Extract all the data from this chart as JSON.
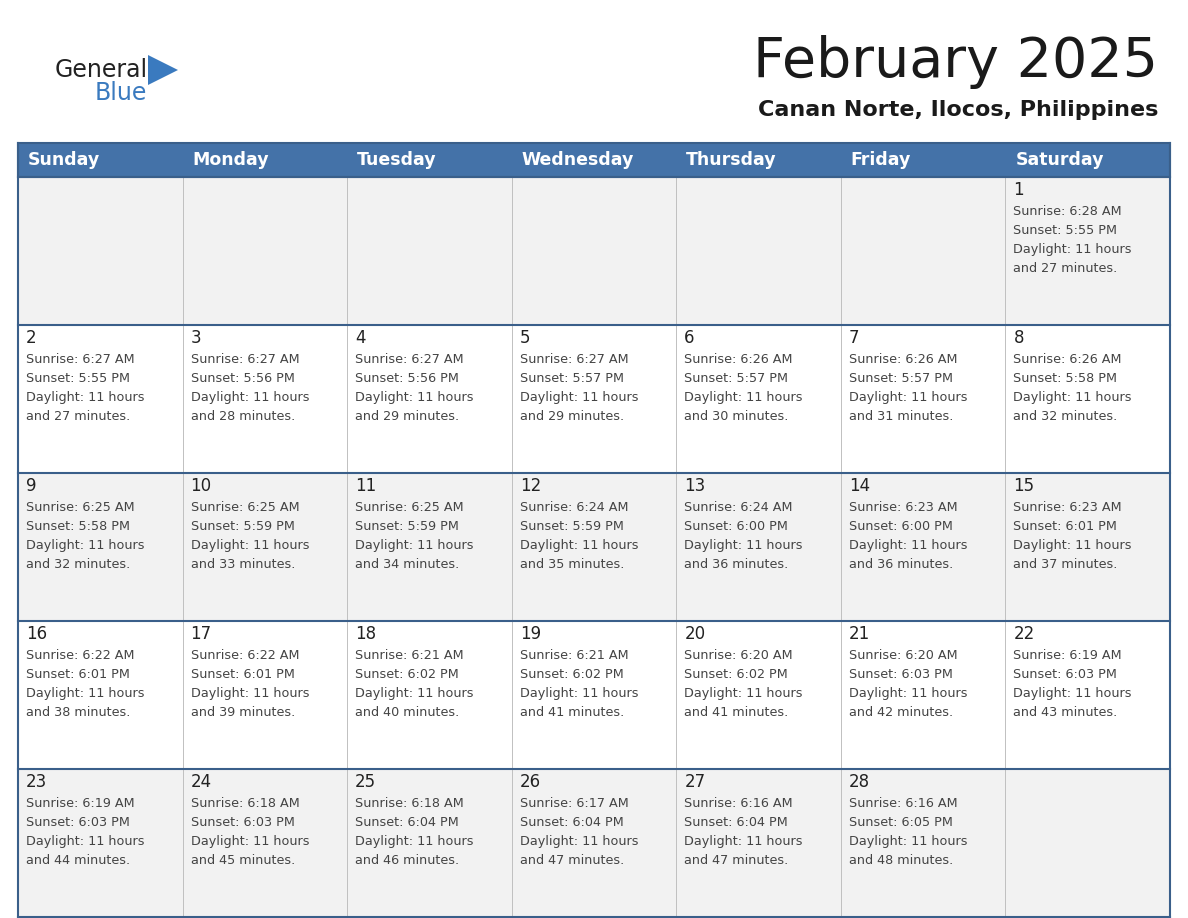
{
  "title": "February 2025",
  "subtitle": "Canan Norte, Ilocos, Philippines",
  "header_bg": "#4472a8",
  "header_text": "#ffffff",
  "days_of_week": [
    "Sunday",
    "Monday",
    "Tuesday",
    "Wednesday",
    "Thursday",
    "Friday",
    "Saturday"
  ],
  "row_bg": [
    "#f2f2f2",
    "#ffffff",
    "#f2f2f2",
    "#ffffff",
    "#f2f2f2"
  ],
  "border_color": "#3a5f8a",
  "cell_border_color": "#c0c0c0",
  "day_number_color": "#222222",
  "info_text_color": "#444444",
  "logo_general_color": "#222222",
  "logo_blue_color": "#3a7abf",
  "logo_triangle_color": "#3a7abf",
  "calendar": [
    [
      {
        "day": null,
        "info": null
      },
      {
        "day": null,
        "info": null
      },
      {
        "day": null,
        "info": null
      },
      {
        "day": null,
        "info": null
      },
      {
        "day": null,
        "info": null
      },
      {
        "day": null,
        "info": null
      },
      {
        "day": 1,
        "info": "Sunrise: 6:28 AM\nSunset: 5:55 PM\nDaylight: 11 hours\nand 27 minutes."
      }
    ],
    [
      {
        "day": 2,
        "info": "Sunrise: 6:27 AM\nSunset: 5:55 PM\nDaylight: 11 hours\nand 27 minutes."
      },
      {
        "day": 3,
        "info": "Sunrise: 6:27 AM\nSunset: 5:56 PM\nDaylight: 11 hours\nand 28 minutes."
      },
      {
        "day": 4,
        "info": "Sunrise: 6:27 AM\nSunset: 5:56 PM\nDaylight: 11 hours\nand 29 minutes."
      },
      {
        "day": 5,
        "info": "Sunrise: 6:27 AM\nSunset: 5:57 PM\nDaylight: 11 hours\nand 29 minutes."
      },
      {
        "day": 6,
        "info": "Sunrise: 6:26 AM\nSunset: 5:57 PM\nDaylight: 11 hours\nand 30 minutes."
      },
      {
        "day": 7,
        "info": "Sunrise: 6:26 AM\nSunset: 5:57 PM\nDaylight: 11 hours\nand 31 minutes."
      },
      {
        "day": 8,
        "info": "Sunrise: 6:26 AM\nSunset: 5:58 PM\nDaylight: 11 hours\nand 32 minutes."
      }
    ],
    [
      {
        "day": 9,
        "info": "Sunrise: 6:25 AM\nSunset: 5:58 PM\nDaylight: 11 hours\nand 32 minutes."
      },
      {
        "day": 10,
        "info": "Sunrise: 6:25 AM\nSunset: 5:59 PM\nDaylight: 11 hours\nand 33 minutes."
      },
      {
        "day": 11,
        "info": "Sunrise: 6:25 AM\nSunset: 5:59 PM\nDaylight: 11 hours\nand 34 minutes."
      },
      {
        "day": 12,
        "info": "Sunrise: 6:24 AM\nSunset: 5:59 PM\nDaylight: 11 hours\nand 35 minutes."
      },
      {
        "day": 13,
        "info": "Sunrise: 6:24 AM\nSunset: 6:00 PM\nDaylight: 11 hours\nand 36 minutes."
      },
      {
        "day": 14,
        "info": "Sunrise: 6:23 AM\nSunset: 6:00 PM\nDaylight: 11 hours\nand 36 minutes."
      },
      {
        "day": 15,
        "info": "Sunrise: 6:23 AM\nSunset: 6:01 PM\nDaylight: 11 hours\nand 37 minutes."
      }
    ],
    [
      {
        "day": 16,
        "info": "Sunrise: 6:22 AM\nSunset: 6:01 PM\nDaylight: 11 hours\nand 38 minutes."
      },
      {
        "day": 17,
        "info": "Sunrise: 6:22 AM\nSunset: 6:01 PM\nDaylight: 11 hours\nand 39 minutes."
      },
      {
        "day": 18,
        "info": "Sunrise: 6:21 AM\nSunset: 6:02 PM\nDaylight: 11 hours\nand 40 minutes."
      },
      {
        "day": 19,
        "info": "Sunrise: 6:21 AM\nSunset: 6:02 PM\nDaylight: 11 hours\nand 41 minutes."
      },
      {
        "day": 20,
        "info": "Sunrise: 6:20 AM\nSunset: 6:02 PM\nDaylight: 11 hours\nand 41 minutes."
      },
      {
        "day": 21,
        "info": "Sunrise: 6:20 AM\nSunset: 6:03 PM\nDaylight: 11 hours\nand 42 minutes."
      },
      {
        "day": 22,
        "info": "Sunrise: 6:19 AM\nSunset: 6:03 PM\nDaylight: 11 hours\nand 43 minutes."
      }
    ],
    [
      {
        "day": 23,
        "info": "Sunrise: 6:19 AM\nSunset: 6:03 PM\nDaylight: 11 hours\nand 44 minutes."
      },
      {
        "day": 24,
        "info": "Sunrise: 6:18 AM\nSunset: 6:03 PM\nDaylight: 11 hours\nand 45 minutes."
      },
      {
        "day": 25,
        "info": "Sunrise: 6:18 AM\nSunset: 6:04 PM\nDaylight: 11 hours\nand 46 minutes."
      },
      {
        "day": 26,
        "info": "Sunrise: 6:17 AM\nSunset: 6:04 PM\nDaylight: 11 hours\nand 47 minutes."
      },
      {
        "day": 27,
        "info": "Sunrise: 6:16 AM\nSunset: 6:04 PM\nDaylight: 11 hours\nand 47 minutes."
      },
      {
        "day": 28,
        "info": "Sunrise: 6:16 AM\nSunset: 6:05 PM\nDaylight: 11 hours\nand 48 minutes."
      },
      {
        "day": null,
        "info": null
      }
    ]
  ]
}
